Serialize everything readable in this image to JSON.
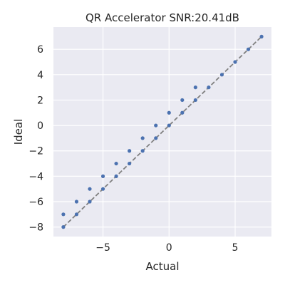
{
  "chart_data": {
    "type": "scatter",
    "title": "QR Accelerator SNR:20.41dB",
    "xlabel": "Actual",
    "ylabel": "Ideal",
    "xlim": [
      -8.75,
      7.75
    ],
    "ylim": [
      -8.75,
      7.75
    ],
    "xticks": [
      -5,
      0,
      5
    ],
    "xtick_labels": [
      "−5",
      "0",
      "5"
    ],
    "yticks": [
      -8,
      -6,
      -4,
      -2,
      0,
      2,
      4,
      6
    ],
    "ytick_labels": [
      "−8",
      "−6",
      "−4",
      "−2",
      "0",
      "2",
      "4",
      "6"
    ],
    "grid": true,
    "background_color": "#eaeaf2",
    "grid_color": "#ffffff",
    "point_color": "#4c72b0",
    "reference_line": {
      "style": "dashed",
      "color": "#808080",
      "from": [
        -8,
        -8
      ],
      "to": [
        7,
        7
      ]
    },
    "points": [
      {
        "x": -8,
        "y": -8
      },
      {
        "x": -8,
        "y": -7
      },
      {
        "x": -7,
        "y": -7
      },
      {
        "x": -7,
        "y": -6
      },
      {
        "x": -6,
        "y": -6
      },
      {
        "x": -6,
        "y": -5
      },
      {
        "x": -5,
        "y": -5
      },
      {
        "x": -5,
        "y": -4
      },
      {
        "x": -4,
        "y": -4
      },
      {
        "x": -4,
        "y": -3
      },
      {
        "x": -3,
        "y": -3
      },
      {
        "x": -3,
        "y": -2
      },
      {
        "x": -2,
        "y": -2
      },
      {
        "x": -2,
        "y": -1
      },
      {
        "x": -1,
        "y": -1
      },
      {
        "x": -1,
        "y": 0
      },
      {
        "x": 0,
        "y": 0
      },
      {
        "x": 0,
        "y": 1
      },
      {
        "x": 1,
        "y": 1
      },
      {
        "x": 1,
        "y": 2
      },
      {
        "x": 2,
        "y": 2
      },
      {
        "x": 2,
        "y": 3
      },
      {
        "x": 3,
        "y": 3
      },
      {
        "x": 4,
        "y": 4
      },
      {
        "x": 5,
        "y": 5
      },
      {
        "x": 6,
        "y": 6
      },
      {
        "x": 7,
        "y": 7
      }
    ]
  }
}
